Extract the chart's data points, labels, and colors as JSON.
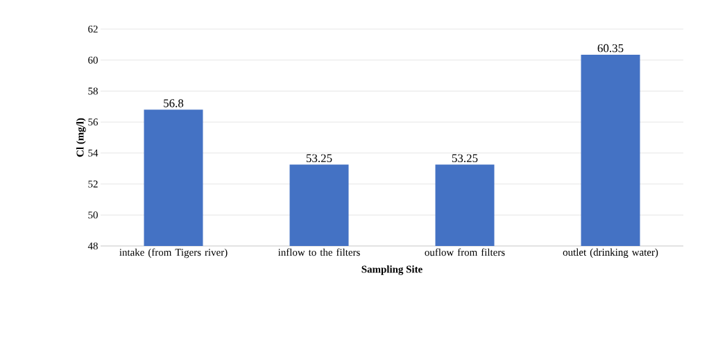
{
  "chart_data": {
    "type": "bar",
    "xlabel": "Sampling Site",
    "ylabel": "Cl (mg/l)",
    "categories": [
      "intake  (from Tigers river)",
      "inflow to the filters",
      "ouflow from filters",
      "outlet (drinking water)"
    ],
    "values": [
      56.8,
      53.25,
      53.25,
      60.35
    ],
    "color": "#4472c4",
    "ylim": [
      48,
      62
    ],
    "yticks": [
      48,
      50,
      52,
      54,
      56,
      58,
      60,
      62
    ],
    "grid": "y",
    "data_labels": true
  }
}
